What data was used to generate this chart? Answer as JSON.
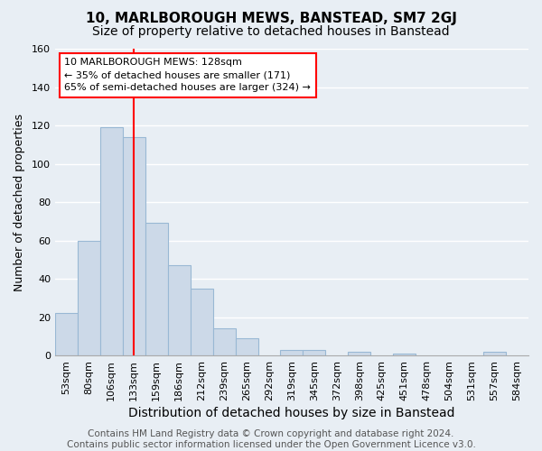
{
  "title": "10, MARLBOROUGH MEWS, BANSTEAD, SM7 2GJ",
  "subtitle": "Size of property relative to detached houses in Banstead",
  "xlabel": "Distribution of detached houses by size in Banstead",
  "ylabel": "Number of detached properties",
  "categories": [
    "53sqm",
    "80sqm",
    "106sqm",
    "133sqm",
    "159sqm",
    "186sqm",
    "212sqm",
    "239sqm",
    "265sqm",
    "292sqm",
    "319sqm",
    "345sqm",
    "372sqm",
    "398sqm",
    "425sqm",
    "451sqm",
    "478sqm",
    "504sqm",
    "531sqm",
    "557sqm",
    "584sqm"
  ],
  "values": [
    22,
    60,
    119,
    114,
    69,
    47,
    35,
    14,
    9,
    0,
    3,
    3,
    0,
    2,
    0,
    1,
    0,
    0,
    0,
    2,
    0
  ],
  "bar_color": "#ccd9e8",
  "bar_edge_color": "#99b8d4",
  "annotation_line_x": "133sqm",
  "annotation_line_color": "red",
  "annotation_box_text": "10 MARLBOROUGH MEWS: 128sqm\n← 35% of detached houses are smaller (171)\n65% of semi-detached houses are larger (324) →",
  "footer_text": "Contains HM Land Registry data © Crown copyright and database right 2024.\nContains public sector information licensed under the Open Government Licence v3.0.",
  "ylim": [
    0,
    160
  ],
  "yticks": [
    0,
    20,
    40,
    60,
    80,
    100,
    120,
    140,
    160
  ],
  "background_color": "#e8eef4",
  "plot_background": "#e8eef4",
  "grid_color": "#ffffff",
  "title_fontsize": 11,
  "subtitle_fontsize": 10,
  "xlabel_fontsize": 10,
  "ylabel_fontsize": 9,
  "tick_fontsize": 8,
  "annotation_fontsize": 8,
  "footer_fontsize": 7.5
}
